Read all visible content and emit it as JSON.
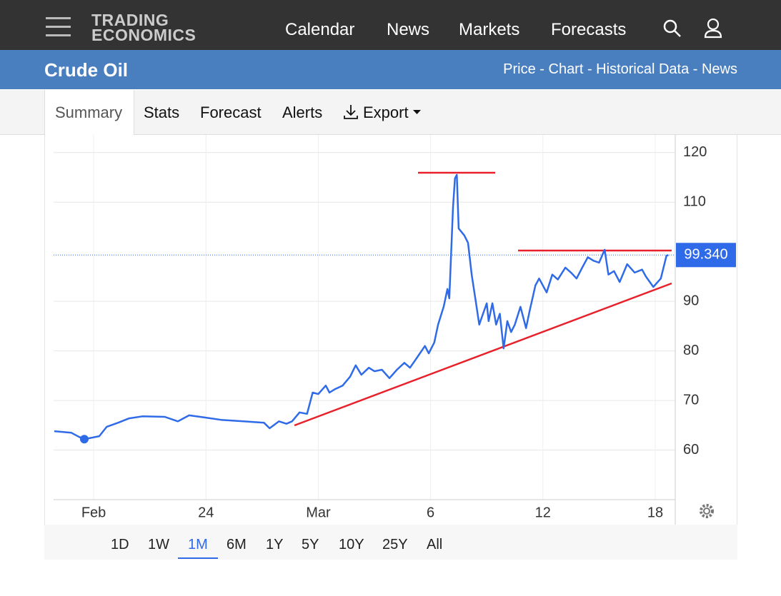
{
  "header": {
    "logo": [
      "TRADING",
      "ECONOMICS"
    ],
    "nav": [
      "Calendar",
      "News",
      "Markets",
      "Forecasts"
    ]
  },
  "banner": {
    "title": "Crude Oil",
    "links": "Price - Chart - Historical Data - News"
  },
  "tabs": [
    "Summary",
    "Stats",
    "Forecast",
    "Alerts",
    "Export"
  ],
  "chart_data": {
    "type": "line",
    "xlim": [
      -2.14,
      31.07
    ],
    "xticks": [
      {
        "value": 0,
        "label": "Feb"
      },
      {
        "value": 6,
        "label": "24"
      },
      {
        "value": 12,
        "label": "Mar"
      },
      {
        "value": 18,
        "label": "6"
      },
      {
        "value": 24,
        "label": "12"
      },
      {
        "value": 30,
        "label": "18"
      }
    ],
    "ylim": [
      50,
      124
    ],
    "yticks": [
      60,
      70,
      80,
      90,
      110,
      120
    ],
    "grid": true,
    "series": [
      {
        "color": "#2f6be8",
        "x": [
          -2.1,
          -1.2,
          -0.8,
          -0.5,
          0.3,
          0.7,
          1.3,
          1.9,
          2.6,
          3.8,
          4.5,
          5.1,
          5.9,
          6.8,
          8.0,
          9.1,
          9.4,
          9.9,
          10.3,
          10.6,
          11.0,
          11.4,
          11.7,
          12.0,
          12.4,
          12.6,
          12.9,
          13.3,
          13.7,
          14.0,
          14.3,
          14.7,
          15.0,
          15.4,
          15.8,
          16.2,
          16.6,
          16.9,
          17.3,
          17.7,
          17.9,
          18.2,
          18.4,
          18.7,
          18.9,
          19.0,
          19.2,
          19.3,
          19.4,
          19.5,
          19.8,
          20.0,
          20.2,
          20.4,
          20.6,
          20.8,
          21.0,
          21.1,
          21.3,
          21.5,
          21.7,
          21.9,
          22.1,
          22.3,
          22.5,
          22.8,
          23.1,
          23.3,
          23.6,
          23.8,
          24.2,
          24.5,
          24.8,
          25.2,
          25.5,
          25.8,
          26.1,
          26.4,
          26.7,
          27.0,
          27.3,
          27.5,
          27.8,
          28.1,
          28.5,
          28.9,
          29.3,
          29.5,
          29.9,
          30.3,
          30.6,
          30.7
        ],
        "values": [
          63.8,
          63.5,
          62.7,
          62.2,
          62.8,
          64.7,
          65.5,
          66.4,
          66.8,
          66.7,
          65.8,
          67.0,
          66.6,
          66.1,
          65.8,
          65.5,
          64.4,
          65.8,
          65.3,
          65.8,
          67.6,
          67.3,
          71.6,
          71.3,
          73.0,
          71.6,
          72.3,
          73.0,
          74.8,
          77.1,
          75.2,
          76.6,
          75.9,
          76.2,
          74.5,
          76.2,
          77.6,
          76.6,
          78.8,
          81.0,
          79.5,
          81.7,
          85.3,
          88.9,
          92.5,
          90.6,
          109.0,
          114.8,
          115.5,
          104.7,
          103.3,
          101.8,
          95.3,
          90.3,
          85.3,
          87.5,
          89.6,
          86.0,
          89.6,
          85.3,
          87.5,
          80.5,
          86.0,
          83.8,
          85.3,
          88.9,
          84.6,
          88.2,
          93.2,
          94.6,
          91.8,
          95.4,
          94.4,
          96.8,
          95.8,
          94.6,
          96.8,
          98.9,
          98.2,
          97.8,
          100.4,
          95.4,
          96.1,
          93.9,
          97.5,
          95.8,
          96.4,
          95.0,
          92.9,
          94.6,
          99.2,
          99.34
        ]
      }
    ],
    "last_price": {
      "value": 99.34,
      "label": "99.340"
    }
  },
  "range_buttons": [
    "1D",
    "1W",
    "1M",
    "6M",
    "1Y",
    "5Y",
    "10Y",
    "25Y",
    "All"
  ],
  "active_range_index": 2
}
